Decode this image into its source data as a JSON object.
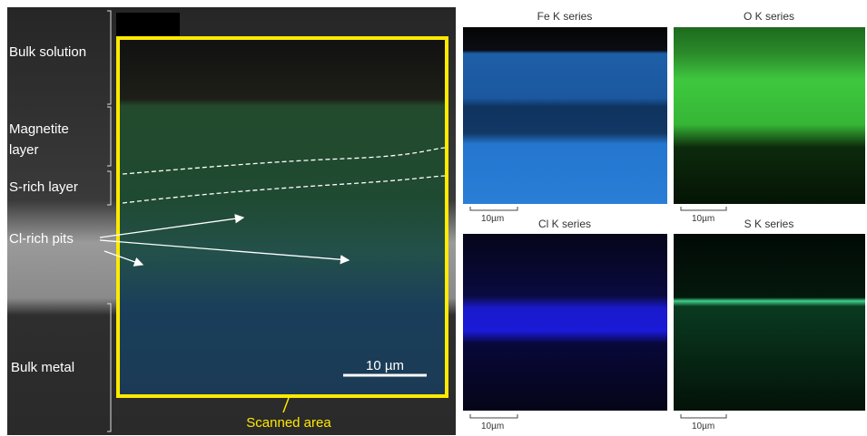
{
  "figure": {
    "left": {
      "labels": {
        "bulk_solution": "Bulk solution",
        "magnetite_layer": [
          "Magnetite",
          "layer"
        ],
        "s_rich_layer": "S-rich layer",
        "cl_rich_pits": "Cl-rich pits",
        "bulk_metal": "Bulk metal"
      },
      "scale": "10 µm",
      "scanned_area": "Scanned area"
    },
    "panels": [
      {
        "title": "Fe K series",
        "scale": "10µm"
      },
      {
        "title": "O K series",
        "scale": "10µm"
      },
      {
        "title": "Cl K series",
        "scale": "10µm"
      },
      {
        "title": "S K series",
        "scale": "10µm"
      }
    ]
  }
}
